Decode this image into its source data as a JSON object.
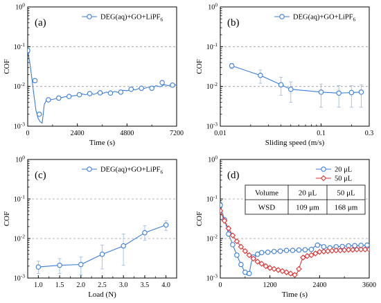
{
  "chart_data": [
    {
      "type": "line",
      "panel_label": "(a)",
      "xlabel": "Time (s)",
      "ylabel": "COF",
      "yscale": "log",
      "xlim": [
        0,
        7200
      ],
      "ylim": [
        0.001,
        1
      ],
      "x_ticks": [
        "0",
        "2400",
        "4800",
        "7200"
      ],
      "y_ticks": [
        "10^0",
        "10^-1",
        "10^-2",
        "10^-3"
      ],
      "grid": "dashed horizontal at decades",
      "legend_position": "top-right",
      "series": [
        {
          "name": "DEG(aq)+GO+LiPF6",
          "color": "#3b7dd8",
          "x": [
            0,
            100,
            200,
            300,
            400,
            500,
            600,
            700,
            800,
            900,
            1000,
            1200,
            1400,
            1600,
            1800,
            2000,
            2200,
            2400,
            2600,
            2800,
            3000,
            3200,
            3400,
            3600,
            3800,
            4000,
            4200,
            4400,
            4600,
            4800,
            5000,
            5200,
            5400,
            5600,
            5800,
            6000,
            6200,
            6400,
            6600,
            6800,
            7000,
            7200
          ],
          "y": [
            0.08,
            0.04,
            0.016,
            0.006,
            0.0025,
            0.0016,
            0.0013,
            0.0012,
            0.0035,
            0.0045,
            0.0046,
            0.0047,
            0.005,
            0.0052,
            0.0055,
            0.0056,
            0.0058,
            0.006,
            0.0065,
            0.0062,
            0.0068,
            0.0063,
            0.007,
            0.0066,
            0.0072,
            0.0068,
            0.0075,
            0.007,
            0.008,
            0.0078,
            0.0085,
            0.0082,
            0.009,
            0.0088,
            0.0095,
            0.009,
            0.0105,
            0.0098,
            0.011,
            0.0105,
            0.0112,
            0.0108
          ],
          "markers_x": [
            0,
            350,
            560,
            1000,
            1500,
            2000,
            2500,
            3000,
            3500,
            4000,
            4500,
            5000,
            5500,
            6000,
            6500,
            7000
          ],
          "markers_y": [
            0.08,
            0.014,
            0.002,
            0.0046,
            0.0051,
            0.0056,
            0.0062,
            0.0066,
            0.0069,
            0.0068,
            0.0072,
            0.0085,
            0.009,
            0.009,
            0.0125,
            0.0108
          ]
        }
      ]
    },
    {
      "type": "scatter",
      "panel_label": "(b)",
      "xlabel": "Sliding speed (m/s)",
      "ylabel": "COF",
      "xscale": "log",
      "yscale": "log",
      "xlim": [
        0.01,
        0.3
      ],
      "ylim": [
        0.001,
        1
      ],
      "x_ticks": [
        "0.01",
        "0.1",
        "0.3"
      ],
      "y_ticks": [
        "10^0",
        "10^-1",
        "10^-2",
        "10^-3"
      ],
      "grid": "dashed horizontal at decades",
      "legend_position": "top-right",
      "series": [
        {
          "name": "DEG(aq)+GO+LiPF6",
          "color": "#3b7dd8",
          "x": [
            0.013,
            0.025,
            0.04,
            0.05,
            0.1,
            0.15,
            0.2,
            0.25
          ],
          "y": [
            0.033,
            0.019,
            0.011,
            0.0085,
            0.0072,
            0.0068,
            0.007,
            0.0072
          ],
          "err_low": [
            0.028,
            0.012,
            0.006,
            0.004,
            0.003,
            0.003,
            0.003,
            0.003
          ],
          "err_high": [
            0.038,
            0.026,
            0.017,
            0.013,
            0.0115,
            0.0105,
            0.0105,
            0.011
          ]
        }
      ]
    },
    {
      "type": "scatter",
      "panel_label": "(c)",
      "xlabel": "Load (N)",
      "ylabel": "COF",
      "yscale": "log",
      "xlim": [
        0.75,
        4.25
      ],
      "ylim": [
        0.001,
        1
      ],
      "x_ticks": [
        "1.0",
        "1.5",
        "2.0",
        "2.5",
        "3.0",
        "3.5",
        "4.0"
      ],
      "y_ticks": [
        "10^0",
        "10^-1",
        "10^-2",
        "10^-3"
      ],
      "grid": "dashed horizontal at decades",
      "legend_position": "top-right",
      "series": [
        {
          "name": "DEG(aq)+GO+LiPF6",
          "color": "#3b7dd8",
          "x": [
            1.0,
            1.5,
            2.0,
            2.5,
            3.0,
            3.5,
            4.0
          ],
          "y": [
            0.0019,
            0.0021,
            0.0022,
            0.004,
            0.0065,
            0.014,
            0.022
          ],
          "err_low": [
            0.0013,
            0.0013,
            0.0012,
            0.0017,
            0.0021,
            0.009,
            0.016
          ],
          "err_high": [
            0.0027,
            0.0031,
            0.0034,
            0.0068,
            0.013,
            0.021,
            0.028
          ]
        }
      ]
    },
    {
      "type": "line",
      "panel_label": "(d)",
      "xlabel": "Time (s)",
      "ylabel": "COF",
      "yscale": "log",
      "xlim": [
        0,
        3600
      ],
      "ylim": [
        0.001,
        1
      ],
      "x_ticks": [
        "0",
        "1200",
        "2400",
        "3600"
      ],
      "y_ticks": [
        "10^0",
        "10^-1",
        "10^-2",
        "10^-3"
      ],
      "grid": "dashed horizontal at decades",
      "legend_position": "top-right",
      "series": [
        {
          "name": "20 μL",
          "color": "#3b7dd8",
          "marker": "circle",
          "x": [
            0,
            50,
            100,
            150,
            200,
            300,
            400,
            500,
            600,
            650,
            700,
            750,
            800,
            850,
            900,
            1000,
            1200,
            1400,
            1600,
            1800,
            2000,
            2200,
            2300,
            2400,
            2500,
            2600,
            2800,
            3000,
            3200,
            3400,
            3600
          ],
          "y": [
            0.07,
            0.045,
            0.03,
            0.02,
            0.013,
            0.007,
            0.0038,
            0.0022,
            0.0014,
            0.0012,
            0.0013,
            0.0025,
            0.0034,
            0.0038,
            0.004,
            0.0044,
            0.0046,
            0.0048,
            0.005,
            0.005,
            0.0052,
            0.0053,
            0.0065,
            0.0072,
            0.0062,
            0.0058,
            0.0062,
            0.0064,
            0.0066,
            0.0067,
            0.0068
          ],
          "markers_x": [
            0,
            100,
            200,
            300,
            400,
            500,
            600,
            700,
            800,
            900,
            1000,
            1150,
            1300,
            1450,
            1600,
            1750,
            1900,
            2050,
            2200,
            2350,
            2500,
            2650,
            2800,
            2950,
            3100,
            3250,
            3400,
            3550
          ],
          "markers_y": [
            0.07,
            0.03,
            0.013,
            0.007,
            0.0038,
            0.0022,
            0.0014,
            0.0013,
            0.0034,
            0.004,
            0.0044,
            0.0045,
            0.0047,
            0.0048,
            0.005,
            0.005,
            0.0051,
            0.0052,
            0.0053,
            0.0068,
            0.0062,
            0.0058,
            0.0062,
            0.0063,
            0.0065,
            0.0066,
            0.0067,
            0.0068
          ]
        },
        {
          "name": "50 μL",
          "color": "#e03030",
          "marker": "diamond",
          "x": [
            0,
            50,
            100,
            200,
            300,
            400,
            500,
            600,
            700,
            800,
            900,
            1000,
            1100,
            1200,
            1300,
            1400,
            1500,
            1600,
            1700,
            1800,
            1850,
            1900,
            1950,
            2000,
            2100,
            2200,
            2300,
            2400,
            2600,
            2800,
            3000,
            3200,
            3400,
            3600
          ],
          "y": [
            0.05,
            0.038,
            0.028,
            0.018,
            0.012,
            0.0085,
            0.0062,
            0.0048,
            0.0038,
            0.0031,
            0.0026,
            0.0023,
            0.002,
            0.0018,
            0.0017,
            0.0016,
            0.0015,
            0.0014,
            0.0013,
            0.0012,
            0.0013,
            0.0017,
            0.0025,
            0.0033,
            0.0036,
            0.0038,
            0.0042,
            0.0046,
            0.0048,
            0.005,
            0.0051,
            0.0052,
            0.0053,
            0.0053
          ],
          "markers_x": [
            0,
            100,
            200,
            300,
            400,
            500,
            600,
            700,
            800,
            900,
            1000,
            1100,
            1200,
            1300,
            1400,
            1500,
            1600,
            1700,
            1800,
            1900,
            2000,
            2100,
            2200,
            2300,
            2400,
            2500,
            2600,
            2700,
            2800,
            2900,
            3000,
            3100,
            3200,
            3300,
            3400,
            3500,
            3600
          ],
          "markers_y": [
            0.05,
            0.028,
            0.018,
            0.012,
            0.0085,
            0.0062,
            0.0048,
            0.0038,
            0.0031,
            0.0026,
            0.0023,
            0.002,
            0.0018,
            0.0017,
            0.0016,
            0.0015,
            0.0014,
            0.0013,
            0.0012,
            0.0017,
            0.0033,
            0.0036,
            0.0038,
            0.0042,
            0.0046,
            0.0047,
            0.0048,
            0.0049,
            0.005,
            0.005,
            0.0051,
            0.0052,
            0.0052,
            0.0053,
            0.0053,
            0.0053,
            0.0053
          ]
        }
      ],
      "table": {
        "headers": [
          "Volume",
          "20 μL",
          "50 μL"
        ],
        "rows": [
          [
            "WSD",
            "109 μm",
            "168 μm"
          ]
        ]
      }
    }
  ]
}
